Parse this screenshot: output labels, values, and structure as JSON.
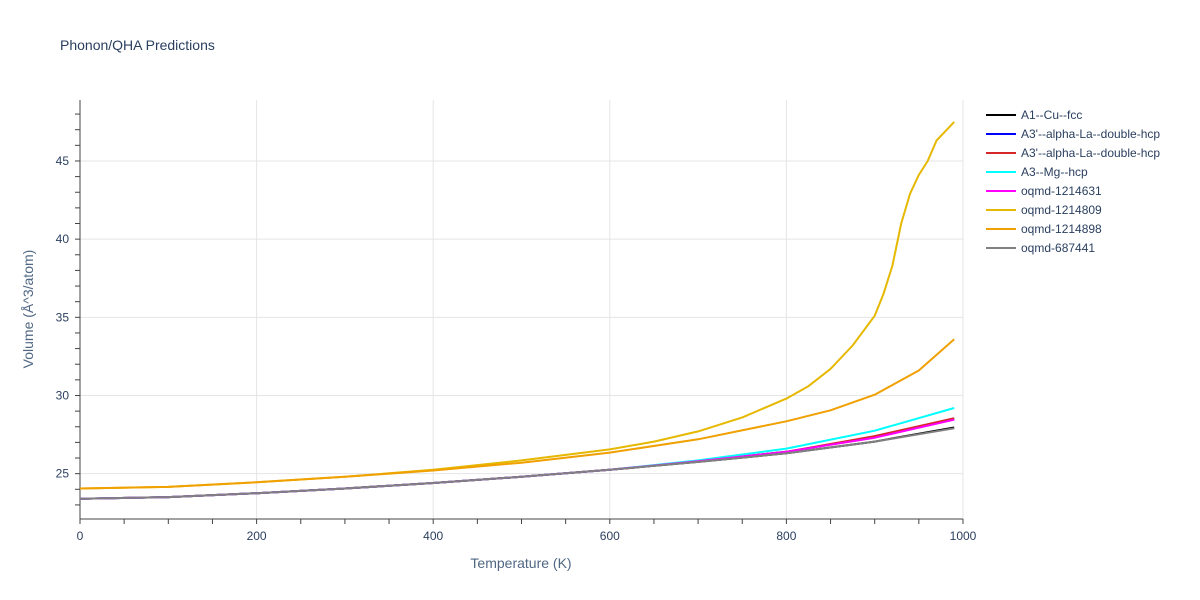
{
  "chart_data": {
    "type": "line",
    "title": "Phonon/QHA Predictions",
    "xlabel": "Temperature (K)",
    "ylabel": "Volume (Å^3/atom)",
    "xlim": [
      0,
      1000
    ],
    "ylim": [
      22.1,
      48.9
    ],
    "xticks": [
      0,
      200,
      400,
      600,
      800,
      1000
    ],
    "yticks": [
      25,
      30,
      35,
      40,
      45
    ],
    "grid": true,
    "legend_position": "right",
    "series": [
      {
        "name": "A1--Cu--fcc",
        "color": "#000000",
        "x": [
          0,
          100,
          200,
          300,
          400,
          500,
          600,
          700,
          800,
          900,
          990
        ],
        "y": [
          23.4,
          23.5,
          23.75,
          24.05,
          24.4,
          24.8,
          25.25,
          25.75,
          26.3,
          27.05,
          27.95
        ]
      },
      {
        "name": "A3'--alpha-La--double-hcp",
        "color": "#0000ff",
        "x": [
          0,
          100,
          200,
          300,
          400,
          500,
          600,
          700,
          800,
          900,
          990
        ],
        "y": [
          23.4,
          23.5,
          23.75,
          24.05,
          24.4,
          24.8,
          25.25,
          25.8,
          26.4,
          27.35,
          28.5
        ]
      },
      {
        "name": "A3'--alpha-La--double-hcp",
        "color": "#d62728",
        "x": [
          0,
          100,
          200,
          300,
          400,
          500,
          600,
          700,
          800,
          900,
          990
        ],
        "y": [
          23.4,
          23.5,
          23.75,
          24.05,
          24.4,
          24.8,
          25.25,
          25.8,
          26.4,
          27.4,
          28.55
        ]
      },
      {
        "name": "A3--Mg--hcp",
        "color": "#00ffff",
        "x": [
          0,
          100,
          200,
          300,
          400,
          500,
          600,
          700,
          800,
          900,
          990
        ],
        "y": [
          23.4,
          23.5,
          23.75,
          24.05,
          24.4,
          24.8,
          25.25,
          25.85,
          26.6,
          27.75,
          29.2
        ]
      },
      {
        "name": "oqmd-1214631",
        "color": "#ff00ff",
        "x": [
          0,
          100,
          200,
          300,
          400,
          500,
          600,
          700,
          800,
          900,
          990
        ],
        "y": [
          23.4,
          23.5,
          23.75,
          24.05,
          24.4,
          24.8,
          25.25,
          25.8,
          26.4,
          27.3,
          28.45
        ]
      },
      {
        "name": "oqmd-1214809",
        "color": "#e6b800",
        "x": [
          0,
          100,
          200,
          300,
          400,
          500,
          600,
          650,
          700,
          750,
          800,
          825,
          850,
          875,
          900,
          910,
          920,
          930,
          940,
          950,
          960,
          970,
          980,
          990
        ],
        "y": [
          24.05,
          24.15,
          24.45,
          24.8,
          25.25,
          25.85,
          26.55,
          27.05,
          27.7,
          28.6,
          29.8,
          30.6,
          31.7,
          33.2,
          35.1,
          36.5,
          38.3,
          41.0,
          42.9,
          44.1,
          45.0,
          46.3,
          46.9,
          47.5
        ]
      },
      {
        "name": "oqmd-1214898",
        "color": "#f0a000",
        "x": [
          0,
          100,
          200,
          300,
          400,
          500,
          600,
          700,
          800,
          850,
          900,
          950,
          990
        ],
        "y": [
          24.05,
          24.15,
          24.45,
          24.8,
          25.2,
          25.7,
          26.35,
          27.2,
          28.35,
          29.05,
          30.05,
          31.6,
          33.6
        ]
      },
      {
        "name": "oqmd-687441",
        "color": "#808080",
        "x": [
          0,
          100,
          200,
          300,
          400,
          500,
          600,
          700,
          800,
          900,
          990
        ],
        "y": [
          23.4,
          23.5,
          23.75,
          24.05,
          24.4,
          24.8,
          25.25,
          25.75,
          26.3,
          27.05,
          27.9
        ]
      }
    ]
  }
}
